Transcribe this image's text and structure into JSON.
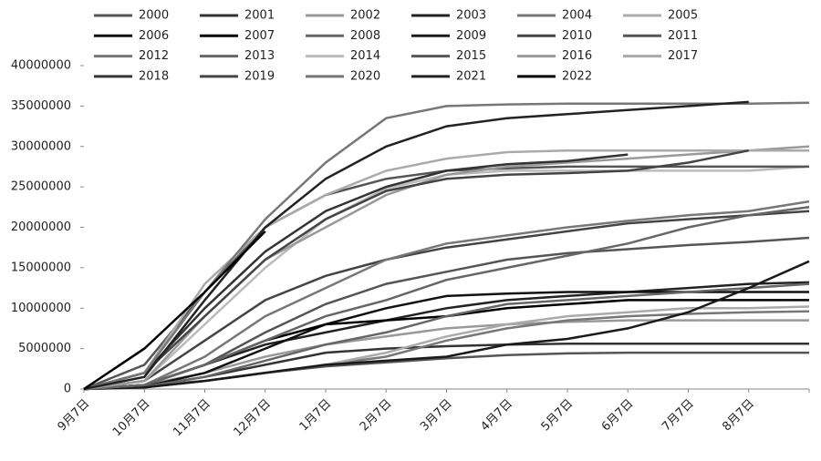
{
  "chart_data": {
    "type": "line",
    "categories": [
      "9月7日",
      "10月7日",
      "11月7日",
      "12月7日",
      "1月7日",
      "2月7日",
      "3月7日",
      "4月7日",
      "5月7日",
      "6月7日",
      "7月7日",
      "8月7日",
      null
    ],
    "ylim": [
      0,
      40000000
    ],
    "yticks": [
      0,
      5000000,
      10000000,
      15000000,
      20000000,
      25000000,
      30000000,
      35000000,
      40000000
    ],
    "series": [
      {
        "name": "2000",
        "color": "#555555",
        "values": [
          0,
          500000.0,
          1000000.0,
          2000000.0,
          2800000.0,
          3300000.0,
          3800000.0,
          4200000.0,
          4400000.0,
          4500000.0,
          4500000.0,
          4500000.0,
          4500000.0
        ]
      },
      {
        "name": "2001",
        "color": "#333333",
        "values": [
          0,
          300000.0,
          1500000.0,
          3000000.0,
          4500000.0,
          5000000.0,
          5300000.0,
          5500000.0,
          5600000.0,
          5600000.0,
          5600000.0,
          5600000.0,
          5600000.0
        ]
      },
      {
        "name": "2002",
        "color": "#999999",
        "values": [
          0,
          500000.0,
          2000000.0,
          4000000.0,
          5500000.0,
          6500000.0,
          7500000.0,
          8000000.0,
          8300000.0,
          8500000.0,
          8500000.0,
          8500000.0,
          8500000.0
        ]
      },
      {
        "name": "2003",
        "color": "#222222",
        "values": [
          0,
          500000.0,
          3000000.0,
          5500000.0,
          7000000.0,
          8500000.0,
          10000000.0,
          11000000.0,
          11500000.0,
          12000000.0,
          12500000.0,
          13000000.0,
          13200000.0
        ]
      },
      {
        "name": "2004",
        "color": "#777777",
        "values": [
          0,
          200000.0,
          1000000.0,
          2000000.0,
          3000000.0,
          4000000.0,
          6000000.0,
          7500000.0,
          8500000.0,
          9000000.0,
          9300000.0,
          9500000.0,
          9600000.0
        ]
      },
      {
        "name": "2005",
        "color": "#aaaaaa",
        "values": [
          0,
          300000.0,
          1000000.0,
          2000000.0,
          3000000.0,
          4500000.0,
          6500000.0,
          8000000.0,
          9000000.0,
          9500000.0,
          10000000.0,
          10000000.0,
          10200000.0
        ]
      },
      {
        "name": "2006",
        "color": "#111111",
        "values": [
          0,
          300000.0,
          2000000.0,
          5000000.0,
          8000000.0,
          10000000.0,
          11500000.0,
          11800000.0,
          12000000.0,
          12000000.0,
          12000000.0,
          12000000.0,
          12000000.0
        ]
      },
      {
        "name": "2007",
        "color": "#000000",
        "values": [
          0,
          500000.0,
          3000000.0,
          6000000.0,
          8000000.0,
          8500000.0,
          9000000.0,
          10000000.0,
          10500000.0,
          11000000.0,
          11000000.0,
          11000000.0,
          11000000.0
        ]
      },
      {
        "name": "2008",
        "color": "#666666",
        "values": [
          0,
          300000.0,
          1500000.0,
          3500000.0,
          5500000.0,
          7000000.0,
          9000000.0,
          10500000.0,
          11000000.0,
          11500000.0,
          12000000.0,
          12500000.0,
          13000000.0
        ]
      },
      {
        "name": "2009",
        "color": "#1a1a1a",
        "values": [
          0,
          200000.0,
          1000000.0,
          2000000.0,
          3000000.0,
          3500000.0,
          4000000.0,
          5500000.0,
          6200000.0,
          7500000.0,
          9500000.0,
          12500000.0,
          15800000.0
        ]
      },
      {
        "name": "2010",
        "color": "#444444",
        "values": [
          0,
          1000000.0,
          6000000.0,
          11000000.0,
          14000000.0,
          16000000.0,
          17500000.0,
          18500000.0,
          19500000.0,
          20500000.0,
          21000000.0,
          21500000.0,
          22000000.0
        ]
      },
      {
        "name": "2011",
        "color": "#555555",
        "values": [
          0,
          500000.0,
          3000000.0,
          7000000.0,
          10500000.0,
          13000000.0,
          14500000.0,
          16000000.0,
          16800000.0,
          17300000.0,
          17800000.0,
          18200000.0,
          18700000.0
        ]
      },
      {
        "name": "2012",
        "color": "#777777",
        "values": [
          0,
          500000.0,
          4000000.0,
          9000000.0,
          12500000.0,
          16000000.0,
          18000000.0,
          19000000.0,
          20000000.0,
          20800000.0,
          21500000.0,
          22000000.0,
          23200000.0
        ]
      },
      {
        "name": "2013",
        "color": "#666666",
        "values": [
          0,
          500000.0,
          3000000.0,
          6000000.0,
          9000000.0,
          11000000.0,
          13500000.0,
          15000000.0,
          16500000.0,
          18000000.0,
          20000000.0,
          21500000.0,
          22500000.0
        ]
      },
      {
        "name": "2014",
        "color": "#bbbbbb",
        "values": [
          0,
          1000000.0,
          8000000.0,
          15000000.0,
          21000000.0,
          24800000.0,
          26500000.0,
          27000000.0,
          27000000.0,
          27000000.0,
          27000000.0,
          27000000.0,
          27500000.0
        ]
      },
      {
        "name": "2015",
        "color": "#555555",
        "values": [
          0,
          3000000.0,
          12000000.0,
          20000000.0,
          24000000.0,
          26000000.0,
          27000000.0,
          27300000.0,
          27500000.0,
          27500000.0,
          27500000.0,
          27500000.0,
          27500000.0
        ]
      },
      {
        "name": "2016",
        "color": "#999999",
        "values": [
          0,
          1000000.0,
          9000000.0,
          16000000.0,
          20000000.0,
          24000000.0,
          26500000.0,
          27500000.0,
          28000000.0,
          28500000.0,
          29000000.0,
          29500000.0,
          30000000.0
        ]
      },
      {
        "name": "2017",
        "color": "#aaaaaa",
        "values": [
          0,
          2000000.0,
          13000000.0,
          20000000.0,
          24000000.0,
          27000000.0,
          28500000.0,
          29300000.0,
          29500000.0,
          29500000.0,
          29500000.0,
          29500000.0,
          29500000.0
        ]
      },
      {
        "name": "2018",
        "color": "#333333",
        "values": [
          0,
          2000000.0,
          10000000.0,
          17000000.0,
          22000000.0,
          25000000.0,
          27000000.0,
          27800000.0,
          28200000.0,
          29000000.0,
          null,
          null,
          null
        ]
      },
      {
        "name": "2019",
        "color": "#444444",
        "values": [
          0,
          2000000.0,
          9000000.0,
          16000000.0,
          21000000.0,
          24500000.0,
          26000000.0,
          26500000.0,
          26700000.0,
          27000000.0,
          28000000.0,
          29500000.0,
          null
        ]
      },
      {
        "name": "2020",
        "color": "#777777",
        "values": [
          0,
          2000000.0,
          12000000.0,
          21000000.0,
          28000000.0,
          33500000.0,
          35000000.0,
          35200000.0,
          35300000.0,
          35300000.0,
          35300000.0,
          35300000.0,
          35400000.0
        ]
      },
      {
        "name": "2021",
        "color": "#222222",
        "values": [
          0,
          1500000.0,
          11000000.0,
          20000000.0,
          26000000.0,
          30000000.0,
          32500000.0,
          33500000.0,
          34000000.0,
          34500000.0,
          35000000.0,
          35500000.0,
          null
        ]
      },
      {
        "name": "2022",
        "color": "#000000",
        "values": [
          0,
          5000000.0,
          12000000.0,
          19500000.0,
          null,
          null,
          null,
          null,
          null,
          null,
          null,
          null,
          null
        ]
      }
    ]
  }
}
